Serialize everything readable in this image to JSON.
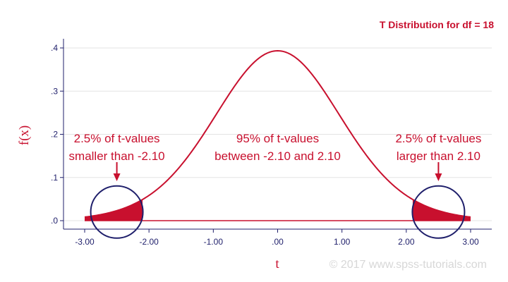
{
  "chart_data": {
    "type": "line",
    "title": "T Distribution for df = 18",
    "xlabel": "t",
    "ylabel": "f(x)",
    "df": 18,
    "xlim": [
      -3.0,
      3.0
    ],
    "ylim": [
      0,
      0.4
    ],
    "xticks": [
      -3,
      -2,
      -1,
      0,
      1,
      2,
      3
    ],
    "xtick_labels": [
      "-3.00",
      "-2.00",
      "-1.00",
      ".00",
      "1.00",
      "2.00",
      "3.00"
    ],
    "yticks": [
      0,
      0.1,
      0.2,
      0.3,
      0.4
    ],
    "ytick_labels": [
      ".0",
      ".1",
      ".2",
      ".3",
      ".4"
    ],
    "grid": true,
    "shaded_regions": [
      {
        "from": -3.0,
        "to": -2.1
      },
      {
        "from": 2.1,
        "to": 3.0
      }
    ],
    "circled_points": [
      {
        "x": -2.5,
        "y": 0.02
      },
      {
        "x": 2.5,
        "y": 0.02
      }
    ],
    "annotations": [
      {
        "lines": [
          "2.5% of t-values",
          "smaller than -2.10"
        ],
        "x": -2.5,
        "arrow": true
      },
      {
        "lines": [
          "95% of t-values",
          "between -2.10 and 2.10"
        ],
        "x": 0.0,
        "arrow": false
      },
      {
        "lines": [
          "2.5% of t-values",
          "larger than 2.10"
        ],
        "x": 2.5,
        "arrow": true
      }
    ],
    "colors": {
      "curve": "#c8102e",
      "shade": "#c8102e",
      "circle": "#1f1f6b",
      "axis": "#1f1f6b",
      "grid": "#e3e3e3",
      "text": "#c8102e"
    }
  },
  "watermark": "© 2017 www.spss-tutorials.com"
}
